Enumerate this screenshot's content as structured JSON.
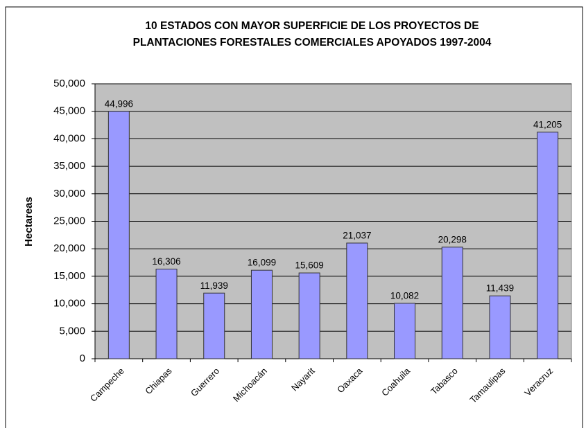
{
  "chart_data": {
    "type": "bar",
    "title": [
      "10 ESTADOS CON MAYOR SUPERFICIE DE LOS PROYECTOS DE",
      "PLANTACIONES FORESTALES COMERCIALES APOYADOS 1997-2004"
    ],
    "y_label": "Hectareas",
    "categories": [
      "Campeche",
      "Chiapas",
      "Guerrero",
      "Michoacán",
      "Nayarit",
      "Oaxaca",
      "Coahuila",
      "Tabasco",
      "Tamaulipas",
      "Veracruz"
    ],
    "values": [
      44996,
      16306,
      11939,
      16099,
      15609,
      21037,
      10082,
      20298,
      11439,
      41205
    ],
    "value_labels": [
      "44,996",
      "16,306",
      "11,939",
      "16,099",
      "15,609",
      "21,037",
      "10,082",
      "20,298",
      "11,439",
      "41,205"
    ],
    "color": "#9999ff",
    "ylim": [
      0,
      50000
    ],
    "yticks": [
      0,
      {
        "value": 5000,
        "label": "5,000"
      },
      {
        "value": 10000,
        "label": "10,000"
      },
      {
        "value": 15000,
        "label": "15,000"
      },
      {
        "value": 20000,
        "label": "20,000"
      },
      {
        "value": 25000,
        "label": "25,000"
      },
      {
        "value": 30000,
        "label": "30,000"
      },
      {
        "value": 35000,
        "label": "35,000"
      },
      {
        "value": 40000,
        "label": "40,000"
      },
      {
        "value": 45000,
        "label": "45,000"
      },
      {
        "value": 50000,
        "label": "50,000"
      }
    ],
    "grid": true
  }
}
